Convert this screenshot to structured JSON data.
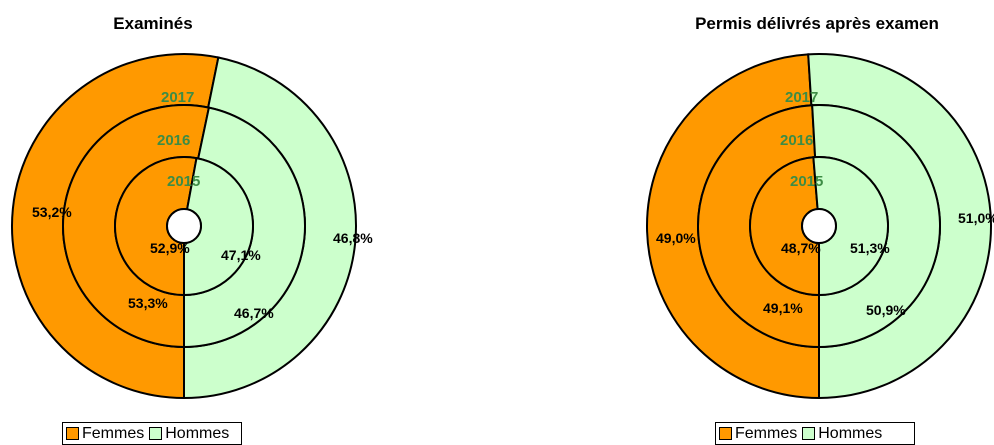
{
  "colors": {
    "femmes": "#ff9900",
    "hommes": "#ccffcc",
    "year_label": "#3d8c45"
  },
  "chart_data": [
    {
      "type": "pie",
      "title": "Examinés",
      "rings": [
        "2015",
        "2016",
        "2017"
      ],
      "series": [
        {
          "name": "Femmes",
          "values": [
            52.9,
            53.3,
            53.2
          ]
        },
        {
          "name": "Hommes",
          "values": [
            47.1,
            46.7,
            46.8
          ]
        }
      ],
      "labels": {
        "Femmes": [
          "52,9%",
          "53,3%",
          "53,2%"
        ],
        "Hommes": [
          "47,1%",
          "46,7%",
          "46,8%"
        ]
      },
      "legend": [
        "Femmes",
        "Hommes"
      ],
      "legend_position": "bottom"
    },
    {
      "type": "pie",
      "title": "Permis délivrés après examen",
      "rings": [
        "2015",
        "2016",
        "2017"
      ],
      "series": [
        {
          "name": "Femmes",
          "values": [
            48.7,
            49.1,
            49.0
          ]
        },
        {
          "name": "Hommes",
          "values": [
            51.3,
            50.9,
            51.0
          ]
        }
      ],
      "labels": {
        "Femmes": [
          "48,7%",
          "49,1%",
          "49,0%"
        ],
        "Hommes": [
          "51,3%",
          "50,9%",
          "51,0%"
        ]
      },
      "legend": [
        "Femmes",
        "Hommes"
      ],
      "legend_position": "bottom"
    }
  ]
}
